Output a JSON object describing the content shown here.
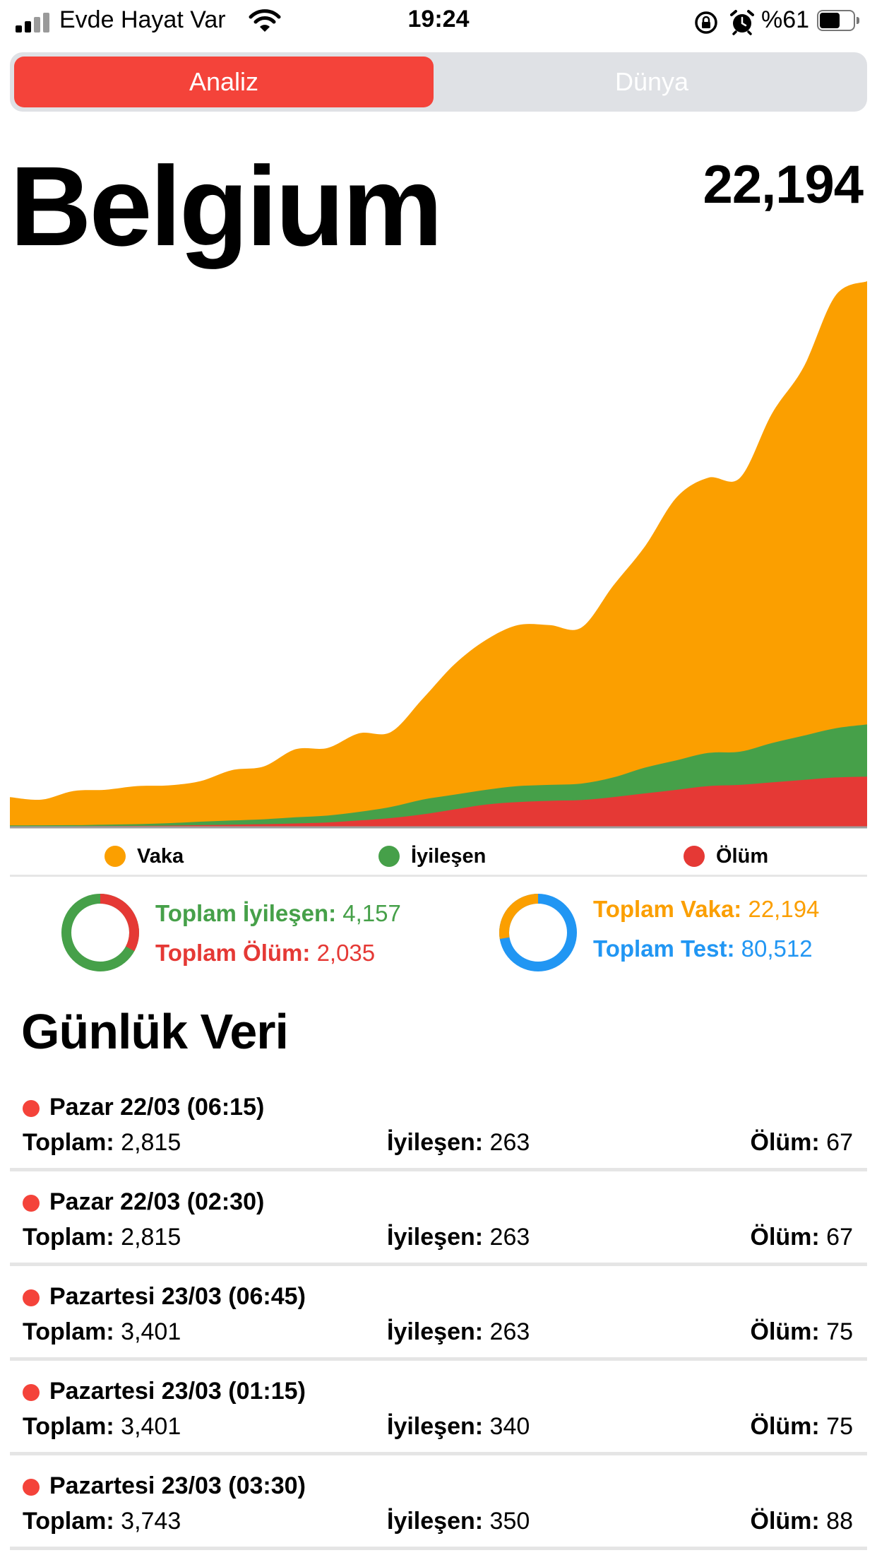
{
  "status_bar": {
    "carrier": "Evde Hayat Var",
    "time": "19:24",
    "battery": "%61",
    "battery_level": 0.61
  },
  "tabs": [
    {
      "label": "Analiz",
      "active": true
    },
    {
      "label": "Dünya",
      "active": false
    }
  ],
  "header": {
    "country": "Belgium",
    "total": "22,194"
  },
  "colors": {
    "accent": "#f4433a",
    "cases": "#fb9f00",
    "recovered": "#46a049",
    "deaths": "#e53935",
    "tests": "#2196f3"
  },
  "chart_data": {
    "type": "area",
    "series": [
      {
        "name": "Vaka",
        "values": [
          1200,
          1100,
          1450,
          1500,
          1650,
          1680,
          1850,
          2300,
          2450,
          3150,
          3200,
          3800,
          3850,
          5200,
          6600,
          7600,
          8200,
          8200,
          8100,
          9800,
          11400,
          13400,
          14200,
          14200,
          16800,
          18700,
          21600,
          22194
        ]
      },
      {
        "name": "İyileşen",
        "values": [
          50,
          55,
          60,
          80,
          100,
          140,
          200,
          250,
          300,
          380,
          450,
          600,
          800,
          1100,
          1300,
          1500,
          1650,
          1700,
          1750,
          2000,
          2400,
          2700,
          3000,
          3050,
          3400,
          3700,
          4000,
          4157
        ]
      },
      {
        "name": "Ölüm",
        "values": [
          10,
          12,
          15,
          20,
          30,
          40,
          60,
          80,
          100,
          130,
          170,
          250,
          350,
          500,
          700,
          900,
          1000,
          1050,
          1080,
          1200,
          1350,
          1500,
          1650,
          1700,
          1800,
          1900,
          2000,
          2035
        ]
      }
    ],
    "ylim": [
      0,
      22194
    ],
    "legend": [
      "Vaka",
      "İyileşen",
      "Ölüm"
    ]
  },
  "totals": {
    "recovered_label": "Toplam İyileşen:",
    "recovered_value": "4,157",
    "deaths_label": "Toplam Ölüm:",
    "deaths_value": "2,035",
    "cases_label": "Toplam Vaka:",
    "cases_value": "22,194",
    "tests_label": "Toplam Test:",
    "tests_value": "80,512",
    "recovered_num": 4157,
    "deaths_num": 2035,
    "cases_num": 22194,
    "tests_num": 80512
  },
  "daily": {
    "title": "Günlük Veri",
    "total_label": "Toplam:",
    "recovered_label": "İyileşen:",
    "death_label": "Ölüm:",
    "rows": [
      {
        "date": "Pazar 22/03 (06:15)",
        "total": "2,815",
        "recovered": "263",
        "deaths": "67"
      },
      {
        "date": "Pazar 22/03 (02:30)",
        "total": "2,815",
        "recovered": "263",
        "deaths": "67"
      },
      {
        "date": "Pazartesi 23/03 (06:45)",
        "total": "3,401",
        "recovered": "263",
        "deaths": "75"
      },
      {
        "date": "Pazartesi 23/03 (01:15)",
        "total": "3,401",
        "recovered": "340",
        "deaths": "75"
      },
      {
        "date": "Pazartesi 23/03 (03:30)",
        "total": "3,743",
        "recovered": "350",
        "deaths": "88"
      }
    ]
  }
}
